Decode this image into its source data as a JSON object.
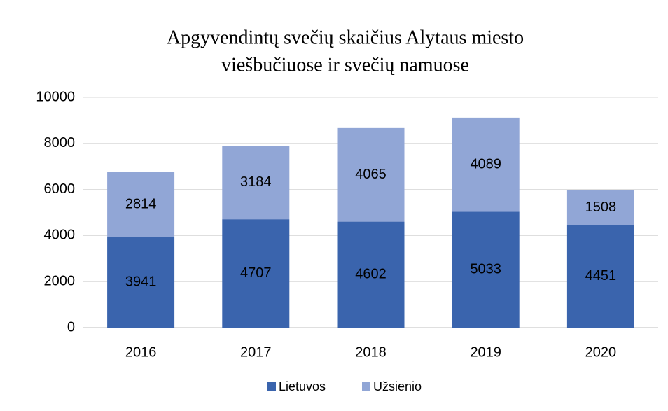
{
  "chart_data": {
    "type": "stacked_bar",
    "title": [
      "Apgyvendintų svečių skaičius Alytaus miesto",
      "viešbučiuose ir svečių namuose"
    ],
    "categories": [
      "2016",
      "2017",
      "2018",
      "2019",
      "2020"
    ],
    "series": [
      {
        "name": "Lietuvos",
        "color": "#3a64ad",
        "values": [
          3941,
          4707,
          4602,
          5033,
          4451
        ]
      },
      {
        "name": "Užsienio",
        "color": "#91a6d6",
        "values": [
          2814,
          3184,
          4065,
          4089,
          1508
        ]
      }
    ],
    "ylim": [
      0,
      10000
    ],
    "yticks": [
      0,
      2000,
      4000,
      6000,
      8000,
      10000
    ],
    "grid": true,
    "legend": "bottom"
  }
}
